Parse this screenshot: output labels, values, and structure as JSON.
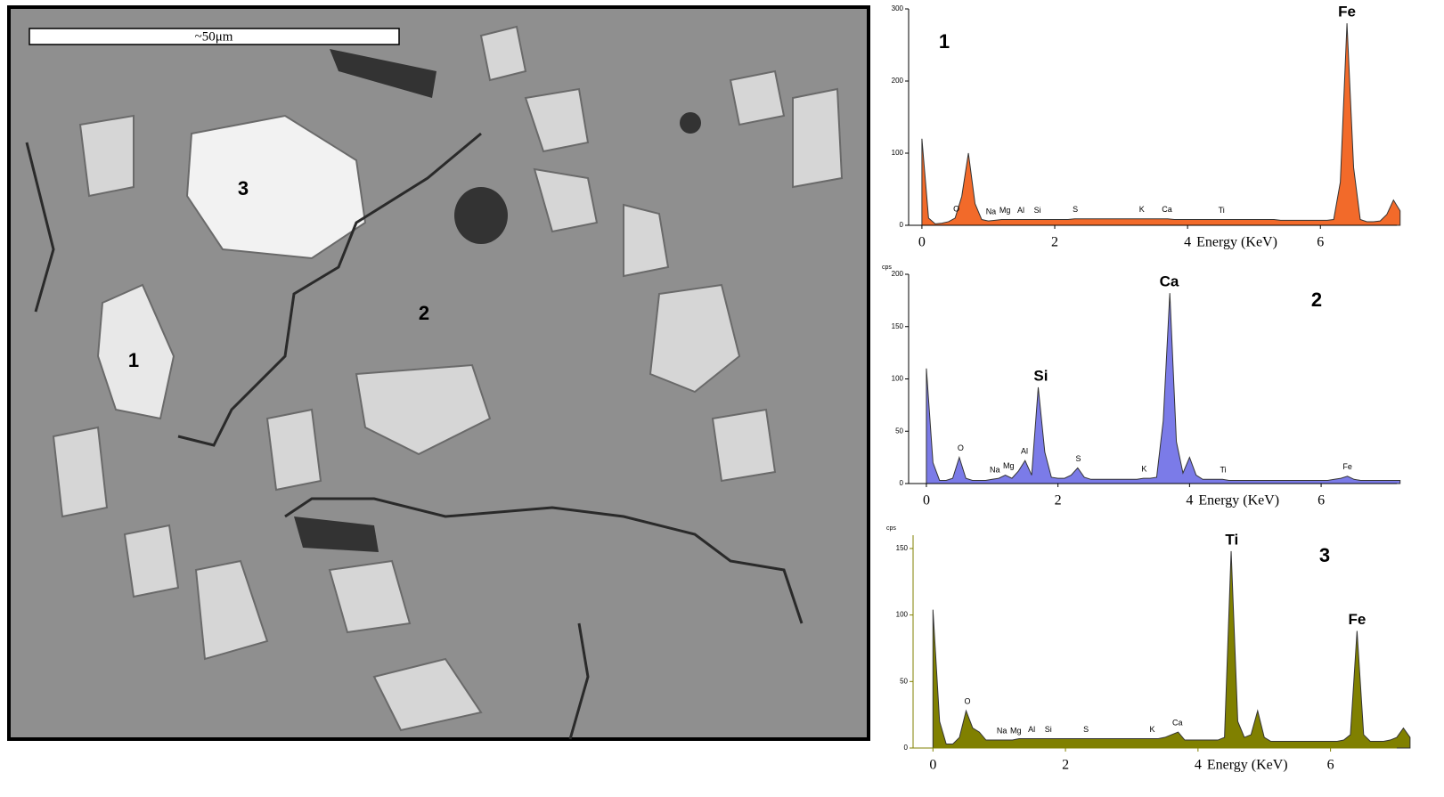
{
  "image": {
    "scale_bar": "~50μm",
    "points": [
      "3",
      "2",
      "1"
    ]
  },
  "chart_data": [
    {
      "type": "area",
      "label": "1",
      "color": "#f26a2a",
      "xlabel": "Energy (KeV)",
      "xlim": [
        -0.2,
        7.15
      ],
      "xticks": [
        0,
        2,
        4,
        6
      ],
      "ylim": [
        0,
        300
      ],
      "yticks": [
        0,
        100,
        200,
        300
      ],
      "x": [
        0,
        0.1,
        0.2,
        0.3,
        0.4,
        0.5,
        0.6,
        0.7,
        0.8,
        0.9,
        1,
        1.1,
        1.2,
        1.3,
        1.4,
        1.5,
        1.6,
        1.7,
        1.8,
        1.9,
        2,
        2.1,
        2.2,
        2.3,
        2.4,
        2.5,
        2.6,
        2.7,
        2.8,
        2.9,
        3,
        3.1,
        3.2,
        3.3,
        3.4,
        3.5,
        3.6,
        3.7,
        3.8,
        3.9,
        4,
        4.1,
        4.2,
        4.3,
        4.4,
        4.5,
        4.6,
        4.7,
        4.8,
        4.9,
        5,
        5.1,
        5.2,
        5.3,
        5.4,
        5.5,
        5.6,
        5.7,
        5.8,
        5.9,
        6,
        6.1,
        6.2,
        6.3,
        6.4,
        6.5,
        6.6,
        6.7,
        6.8,
        6.9,
        7,
        7.1,
        7.2
      ],
      "values": [
        120,
        10,
        2,
        3,
        5,
        10,
        40,
        100,
        30,
        8,
        6,
        7,
        8,
        8,
        8,
        8,
        8,
        8,
        8,
        8,
        8,
        8,
        8,
        9,
        9,
        9,
        9,
        9,
        9,
        9,
        9,
        9,
        9,
        9,
        9,
        9,
        9,
        9,
        8,
        8,
        8,
        8,
        8,
        8,
        8,
        8,
        8,
        8,
        8,
        8,
        8,
        8,
        8,
        8,
        7,
        7,
        7,
        7,
        7,
        7,
        7,
        7,
        8,
        60,
        280,
        80,
        8,
        5,
        5,
        6,
        15,
        35,
        20
      ],
      "peaks": [
        {
          "label": "O",
          "energy": 0.52
        },
        {
          "label": "Na",
          "energy": 1.04
        },
        {
          "label": "Mg",
          "energy": 1.25
        },
        {
          "label": "Al",
          "energy": 1.49
        },
        {
          "label": "Si",
          "energy": 1.74
        },
        {
          "label": "S",
          "energy": 2.31
        },
        {
          "label": "K",
          "energy": 3.31
        },
        {
          "label": "Ca",
          "energy": 3.69
        },
        {
          "label": "Ti",
          "energy": 4.51
        },
        {
          "label": "Fe",
          "energy": 6.4
        }
      ]
    },
    {
      "type": "area",
      "label": "2",
      "color": "#7b7be8",
      "xlabel": "Energy (KeV)",
      "ylabel": "cps",
      "xlim": [
        -0.27,
        7.15
      ],
      "xticks": [
        0,
        2,
        4,
        6
      ],
      "ylim": [
        0,
        200
      ],
      "yticks": [
        0,
        50,
        100,
        150,
        200
      ],
      "x": [
        0,
        0.1,
        0.2,
        0.3,
        0.4,
        0.5,
        0.6,
        0.7,
        0.8,
        0.9,
        1,
        1.1,
        1.2,
        1.3,
        1.4,
        1.5,
        1.6,
        1.7,
        1.8,
        1.9,
        2,
        2.1,
        2.2,
        2.3,
        2.4,
        2.5,
        2.6,
        2.7,
        2.8,
        2.9,
        3,
        3.1,
        3.2,
        3.3,
        3.4,
        3.5,
        3.6,
        3.7,
        3.8,
        3.9,
        4,
        4.1,
        4.2,
        4.3,
        4.4,
        4.5,
        4.6,
        4.7,
        4.8,
        4.9,
        5,
        5.1,
        5.2,
        5.3,
        5.4,
        5.5,
        5.6,
        5.7,
        5.8,
        5.9,
        6,
        6.1,
        6.2,
        6.3,
        6.4,
        6.5,
        6.6,
        6.7,
        6.8,
        6.9,
        7,
        7.1,
        7.2
      ],
      "values": [
        110,
        20,
        3,
        3,
        5,
        25,
        5,
        3,
        3,
        3,
        4,
        5,
        8,
        5,
        12,
        22,
        8,
        92,
        30,
        6,
        5,
        5,
        8,
        15,
        6,
        4,
        4,
        4,
        4,
        4,
        4,
        4,
        4,
        5,
        5,
        6,
        60,
        182,
        40,
        10,
        25,
        8,
        4,
        4,
        4,
        4,
        3,
        3,
        3,
        3,
        3,
        3,
        3,
        3,
        3,
        3,
        3,
        3,
        3,
        3,
        3,
        3,
        4,
        5,
        7,
        4,
        3,
        3,
        3,
        3,
        3,
        3,
        3
      ],
      "peaks": [
        {
          "label": "O",
          "energy": 0.52
        },
        {
          "label": "Na",
          "energy": 1.04
        },
        {
          "label": "Mg",
          "energy": 1.25
        },
        {
          "label": "Al",
          "energy": 1.49
        },
        {
          "label": "Si",
          "energy": 1.74
        },
        {
          "label": "S",
          "energy": 2.31
        },
        {
          "label": "K",
          "energy": 3.31
        },
        {
          "label": "Ca",
          "energy": 3.69
        },
        {
          "label": "Ti",
          "energy": 4.51
        },
        {
          "label": "Fe",
          "energy": 6.4
        }
      ]
    },
    {
      "type": "area",
      "label": "3",
      "color": "#808000",
      "xlabel": "Energy (KeV)",
      "ylabel": "cps",
      "xlim": [
        -0.3,
        7.0
      ],
      "xticks": [
        0,
        2,
        4,
        6
      ],
      "ylim": [
        0,
        160
      ],
      "yticks": [
        0,
        50,
        100,
        150
      ],
      "x": [
        0,
        0.1,
        0.2,
        0.3,
        0.4,
        0.5,
        0.6,
        0.7,
        0.8,
        0.9,
        1,
        1.1,
        1.2,
        1.3,
        1.4,
        1.5,
        1.6,
        1.7,
        1.8,
        1.9,
        2,
        2.1,
        2.2,
        2.3,
        2.4,
        2.5,
        2.6,
        2.7,
        2.8,
        2.9,
        3,
        3.1,
        3.2,
        3.3,
        3.4,
        3.5,
        3.6,
        3.7,
        3.8,
        3.9,
        4,
        4.1,
        4.2,
        4.3,
        4.4,
        4.5,
        4.6,
        4.7,
        4.8,
        4.9,
        5,
        5.1,
        5.2,
        5.3,
        5.4,
        5.5,
        5.6,
        5.7,
        5.8,
        5.9,
        6,
        6.1,
        6.2,
        6.3,
        6.4,
        6.5,
        6.6,
        6.7,
        6.8,
        6.9,
        7,
        7.1,
        7.2
      ],
      "values": [
        104,
        20,
        3,
        3,
        8,
        28,
        15,
        12,
        6,
        6,
        6,
        6,
        6,
        7,
        7,
        7,
        7,
        7,
        7,
        7,
        7,
        7,
        7,
        7,
        7,
        7,
        7,
        7,
        7,
        7,
        7,
        7,
        7,
        7,
        7,
        8,
        10,
        12,
        6,
        6,
        6,
        6,
        6,
        6,
        8,
        148,
        20,
        8,
        10,
        28,
        8,
        5,
        5,
        5,
        5,
        5,
        5,
        5,
        5,
        5,
        5,
        5,
        6,
        10,
        88,
        10,
        5,
        5,
        5,
        6,
        8,
        15,
        8
      ],
      "peaks": [
        {
          "label": "O",
          "energy": 0.52
        },
        {
          "label": "Na",
          "energy": 1.04
        },
        {
          "label": "Mg",
          "energy": 1.25
        },
        {
          "label": "Al",
          "energy": 1.49
        },
        {
          "label": "Si",
          "energy": 1.74
        },
        {
          "label": "S",
          "energy": 2.31
        },
        {
          "label": "K",
          "energy": 3.31
        },
        {
          "label": "Ca",
          "energy": 3.69
        },
        {
          "label": "Ti",
          "energy": 4.51
        },
        {
          "label": "Fe",
          "energy": 6.4
        }
      ]
    }
  ]
}
